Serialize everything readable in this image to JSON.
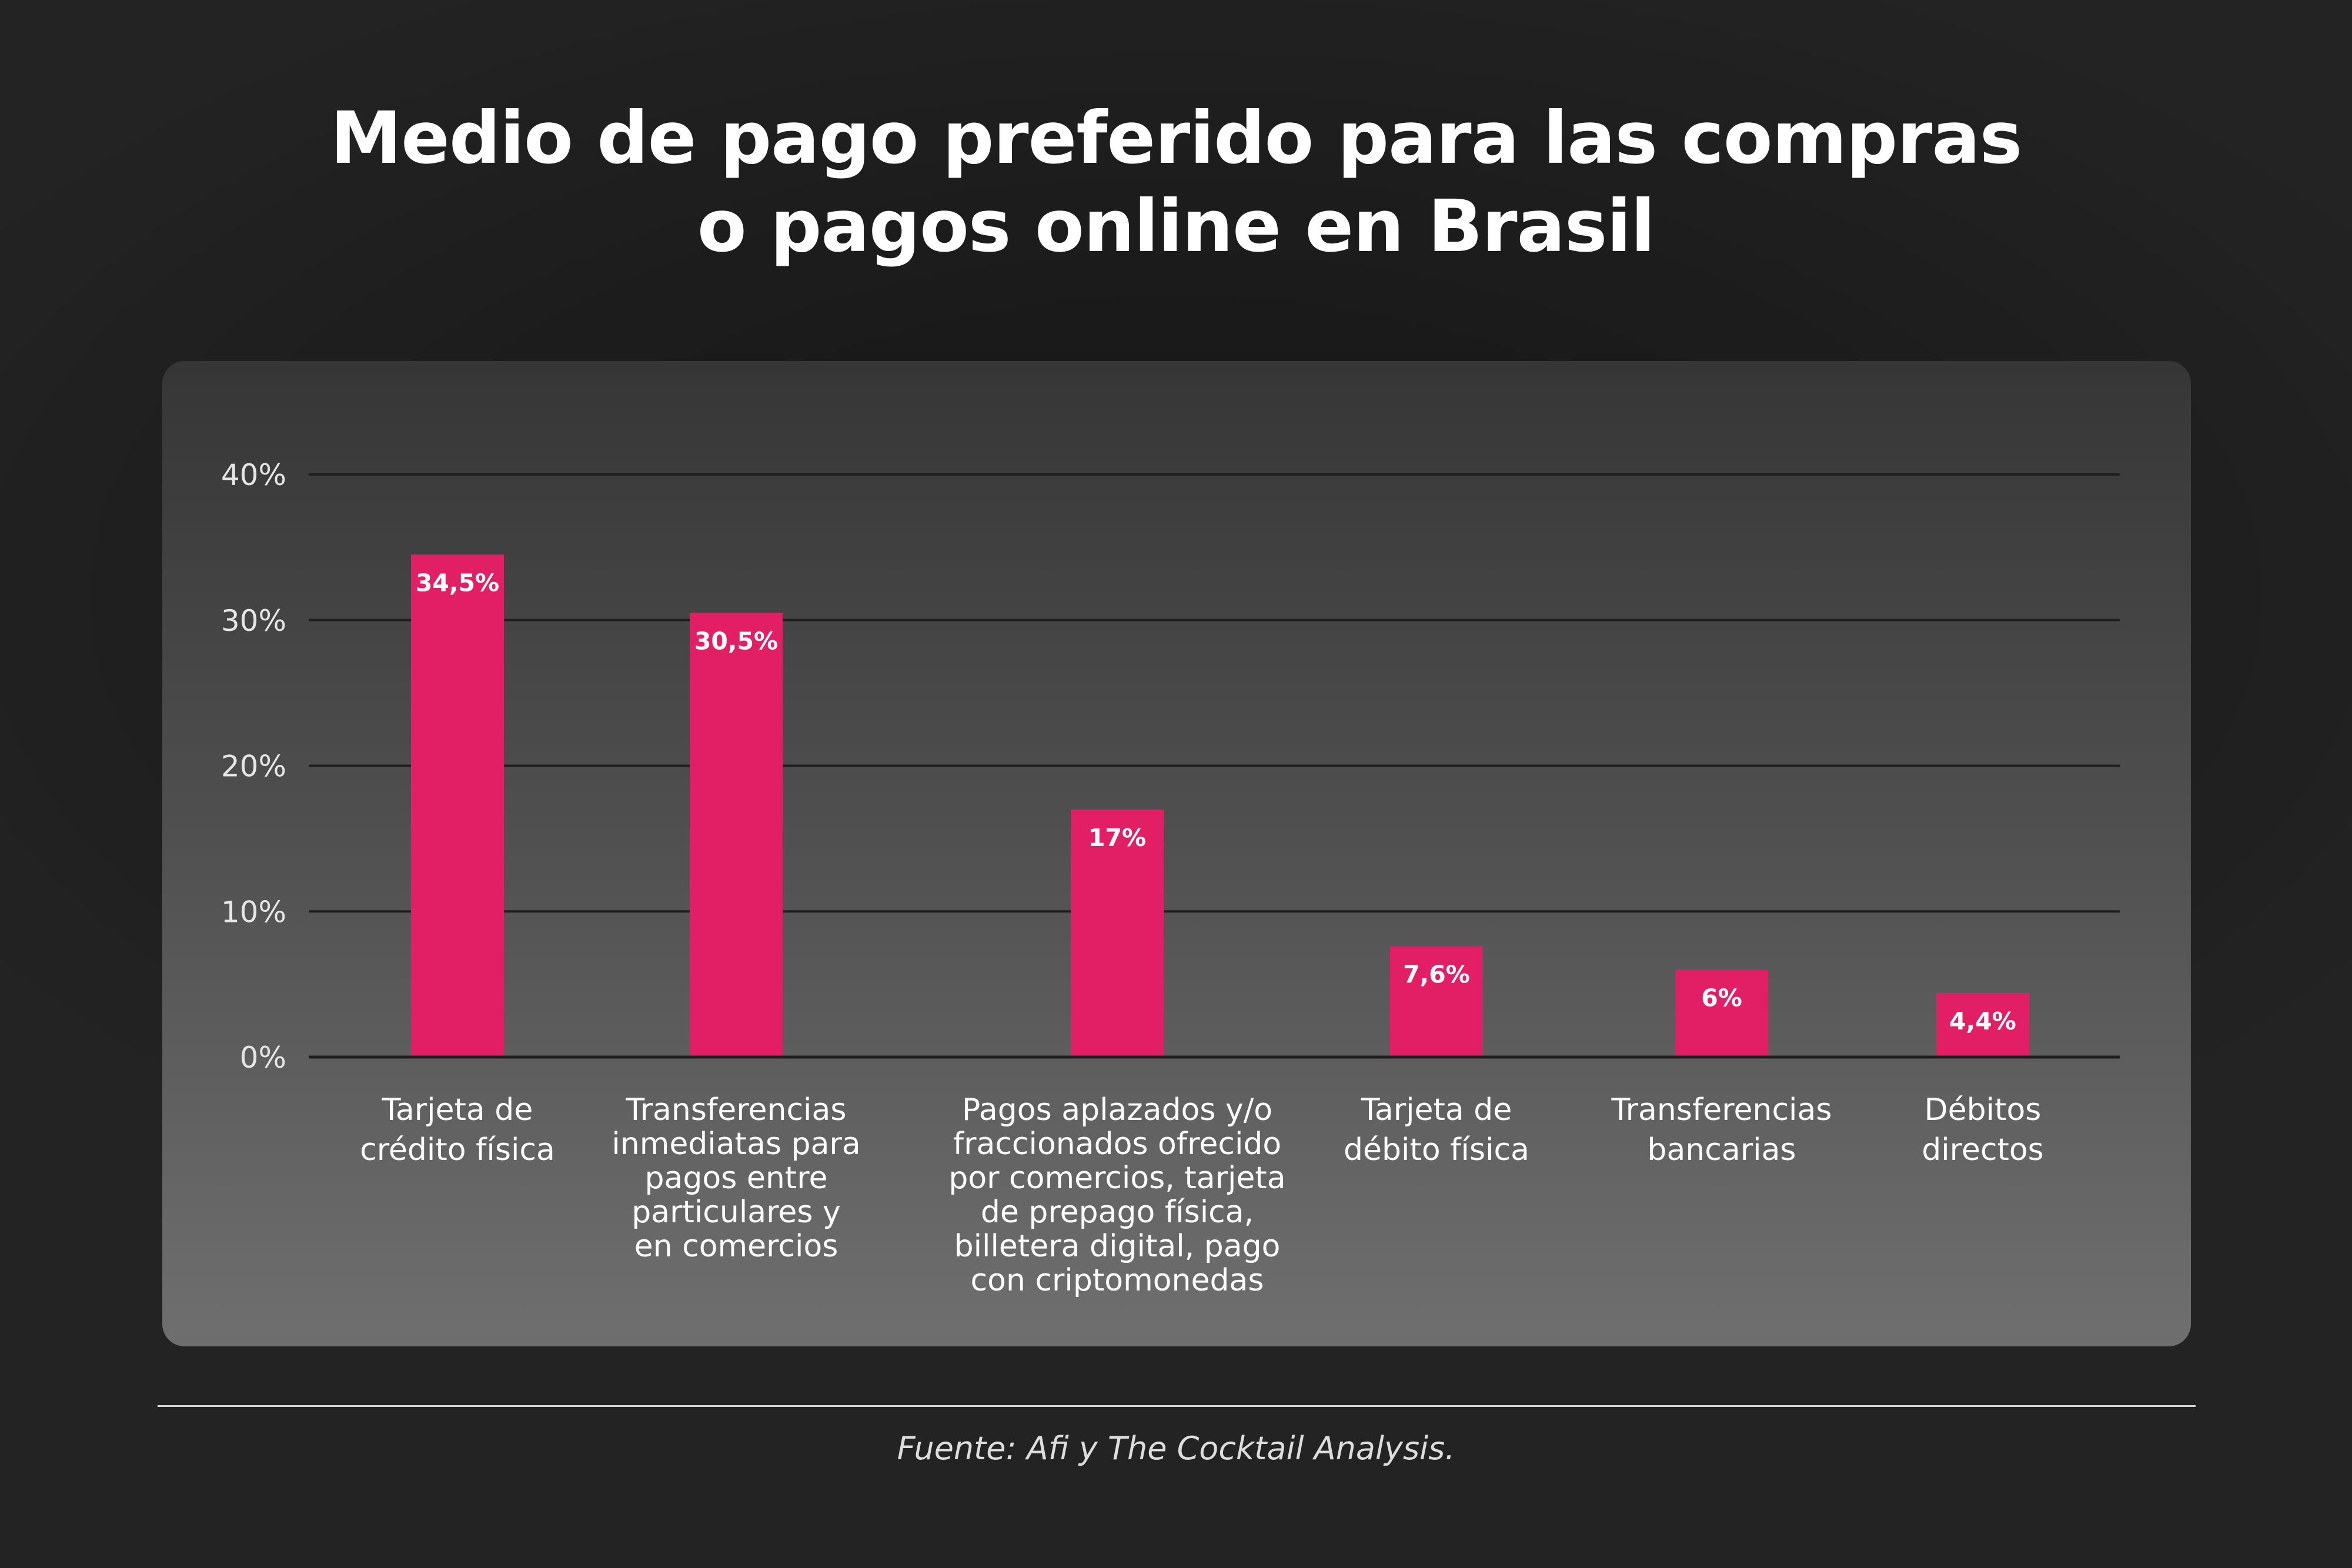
{
  "title_lines": [
    "Medio de pago preferido para las compras",
    "o pagos online en Brasil"
  ],
  "source": "Fuente: Afi y The Cocktail Analysis.",
  "colors": {
    "bar": "#e21e64",
    "grid": "#1e1e1e",
    "tick_text": "#e6e6e6",
    "category_text": "#ffffff",
    "value_label": "#ffffff"
  },
  "chart_data": {
    "type": "bar",
    "categories": [
      [
        "Tarjeta de",
        "crédito física"
      ],
      [
        "Transferencias",
        "inmediatas para",
        "pagos entre",
        "particulares y",
        "en comercios"
      ],
      [
        "Pagos aplazados y/o",
        "fraccionados ofrecido",
        "por comercios, tarjeta",
        "de prepago física,",
        "billetera digital, pago",
        "con criptomonedas"
      ],
      [
        "Tarjeta de",
        "débito física"
      ],
      [
        "Transferencias",
        "bancarias"
      ],
      [
        "Débitos",
        "directos"
      ]
    ],
    "values": [
      34.5,
      30.5,
      17,
      7.6,
      6,
      4.4
    ],
    "value_labels": [
      "34,5%",
      "30,5%",
      "17%",
      "7,6%",
      "6%",
      "4,4%"
    ],
    "ylim": [
      0,
      40
    ],
    "yticks": [
      0,
      10,
      20,
      30,
      40
    ],
    "ytick_labels": [
      "0%",
      "10%",
      "20%",
      "30%",
      "40%"
    ],
    "grid": true,
    "xlabel": "",
    "ylabel": ""
  }
}
